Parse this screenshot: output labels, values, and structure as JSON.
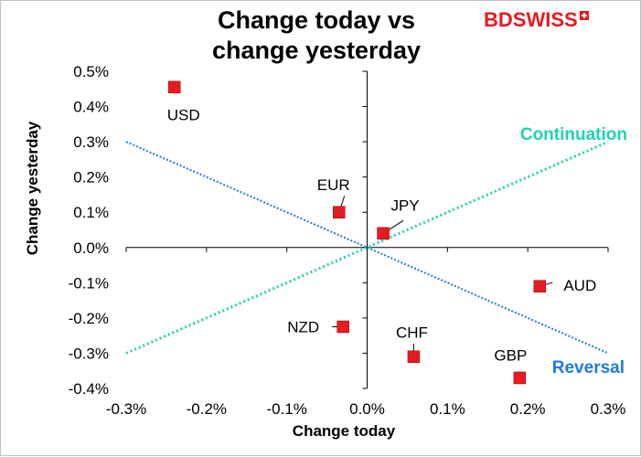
{
  "title": {
    "line1": "Change today vs",
    "line2": "change yesterday"
  },
  "logo": {
    "text": "BDSWISS",
    "mark": "plus-icon"
  },
  "colors": {
    "marker": "#e51b23",
    "continuation": "#1dd3b0",
    "reversal": "#1f7ae0",
    "axis": "#000000",
    "grid": "#d9d9d9"
  },
  "chart_data": {
    "type": "scatter",
    "title": "Change today vs change yesterday",
    "xlabel": "Change today",
    "ylabel": "Change yesterday",
    "xlim": [
      -0.3,
      0.3
    ],
    "ylim": [
      -0.4,
      0.5
    ],
    "x_ticks": [
      -0.3,
      -0.2,
      -0.1,
      0.0,
      0.1,
      0.2,
      0.3
    ],
    "y_ticks": [
      -0.4,
      -0.3,
      -0.2,
      -0.1,
      0.0,
      0.1,
      0.2,
      0.3,
      0.4,
      0.5
    ],
    "x_tick_labels": [
      "-0.3%",
      "-0.2%",
      "-0.1%",
      "0.0%",
      "0.1%",
      "0.2%",
      "0.3%"
    ],
    "y_tick_labels": [
      "-0.4%",
      "-0.3%",
      "-0.2%",
      "-0.1%",
      "0.0%",
      "0.1%",
      "0.2%",
      "0.3%",
      "0.4%",
      "0.5%"
    ],
    "grid": false,
    "points": [
      {
        "label": "USD",
        "x": -0.24,
        "y": 0.455
      },
      {
        "label": "EUR",
        "x": -0.035,
        "y": 0.1
      },
      {
        "label": "JPY",
        "x": 0.02,
        "y": 0.04
      },
      {
        "label": "AUD",
        "x": 0.215,
        "y": -0.11
      },
      {
        "label": "NZD",
        "x": -0.03,
        "y": -0.225
      },
      {
        "label": "CHF",
        "x": 0.058,
        "y": -0.31
      },
      {
        "label": "GBP",
        "x": 0.19,
        "y": -0.37
      }
    ],
    "reference_lines": [
      {
        "name": "Continuation",
        "from": [
          -0.3,
          -0.3
        ],
        "to": [
          0.3,
          0.3
        ]
      },
      {
        "name": "Reversal",
        "from": [
          -0.3,
          0.3
        ],
        "to": [
          0.3,
          -0.3
        ]
      }
    ]
  }
}
